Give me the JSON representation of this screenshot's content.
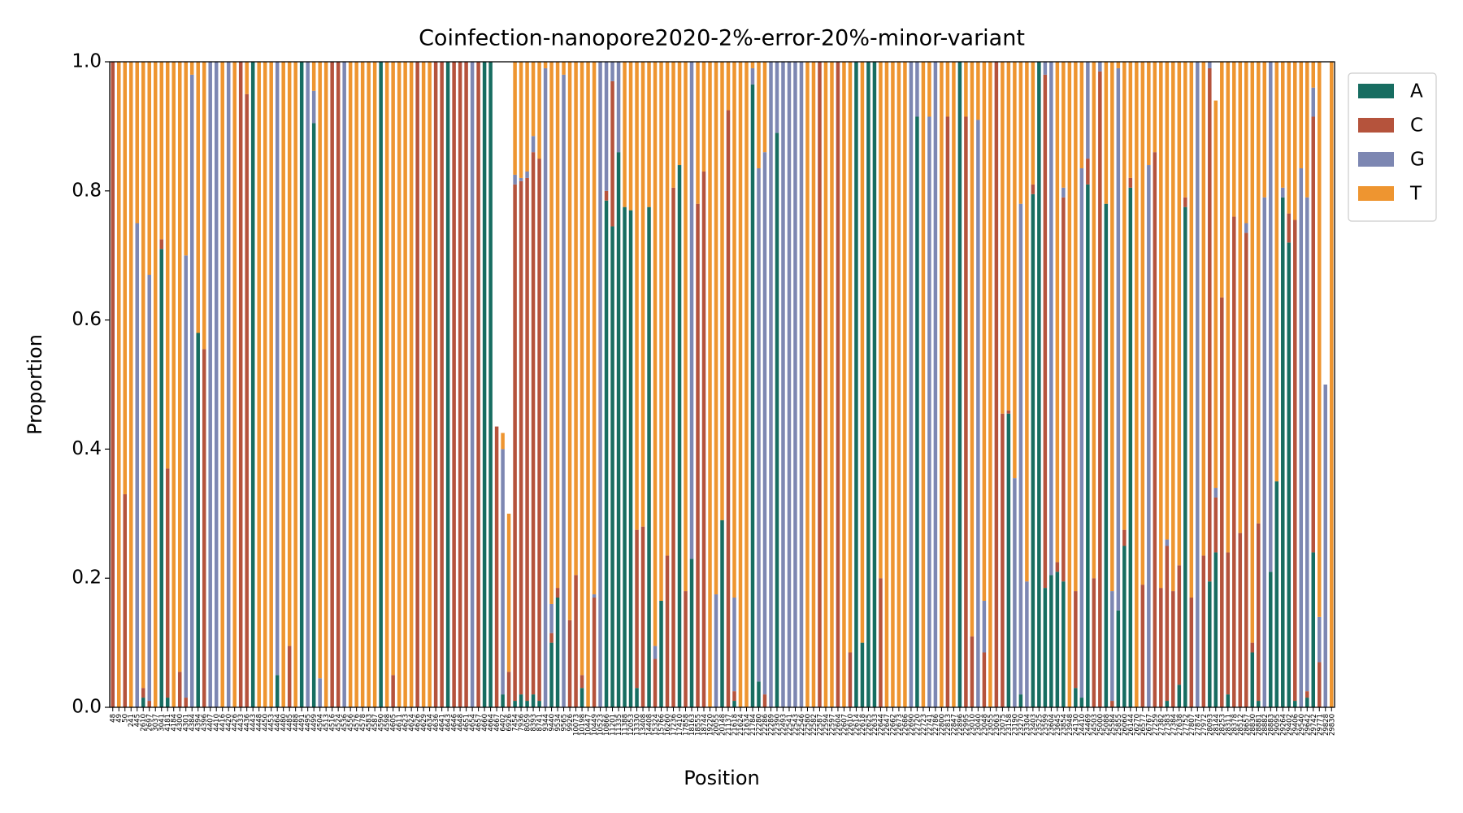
{
  "chart_data": {
    "type": "stacked_bar",
    "title": "Coinfection-nanopore2020-2%-error-20%-minor-variant",
    "xlabel": "Position",
    "ylabel": "Proportion",
    "ylim": [
      0,
      1
    ],
    "yticks": [
      {
        "value": 0,
        "label": "0.0"
      },
      {
        "value": 0.2,
        "label": "0.2"
      },
      {
        "value": 0.4,
        "label": "0.4"
      },
      {
        "value": 0.6,
        "label": "0.6"
      },
      {
        "value": 0.8,
        "label": "0.8"
      },
      {
        "value": 1,
        "label": "1.0"
      }
    ],
    "categories": [
      "48",
      "49",
      "50",
      "241",
      "445",
      "2610",
      "2697",
      "3037",
      "3041",
      "4181",
      "4184",
      "4300",
      "4301",
      "4384",
      "4394",
      "4396",
      "4407",
      "4410",
      "4416",
      "4420",
      "4426",
      "4433",
      "4436",
      "4443",
      "4448",
      "4450",
      "4453",
      "4464",
      "4480",
      "4485",
      "4488",
      "4491",
      "4495",
      "4499",
      "4504",
      "4513",
      "4516",
      "4524",
      "4536",
      "4556",
      "4576",
      "4578",
      "4583",
      "4587",
      "4590",
      "4598",
      "4605",
      "4611",
      "4623",
      "4624",
      "4626",
      "4629",
      "4634",
      "4636",
      "4641",
      "4643",
      "4646",
      "4648",
      "4651",
      "4654",
      "4657",
      "4660",
      "4664",
      "4667",
      "6402",
      "6926",
      "7454",
      "7936",
      "8059",
      "8393",
      "8741",
      "9344",
      "9440",
      "9534",
      "9565",
      "9926",
      "10073",
      "10198",
      "10447",
      "10449",
      "10523",
      "10866",
      "11201",
      "11335",
      "11388",
      "12053",
      "13330",
      "13408",
      "14408",
      "15324",
      "15766",
      "16260",
      "17236",
      "17410",
      "17858",
      "18163",
      "18555",
      "18744",
      "19220",
      "20055",
      "20148",
      "21137",
      "21618",
      "21624",
      "21634",
      "21784",
      "22280",
      "22286",
      "22289",
      "22390",
      "22493",
      "22541",
      "22543",
      "22546",
      "22580",
      "22582",
      "22587",
      "22594",
      "22597",
      "22604",
      "22607",
      "22610",
      "22614",
      "22618",
      "22625",
      "22633",
      "22644",
      "22647",
      "22662",
      "22673",
      "22686",
      "22690",
      "22720",
      "22723",
      "22741",
      "22786",
      "22800",
      "22813",
      "22847",
      "22896",
      "22995",
      "23010",
      "23040",
      "23048",
      "23055",
      "23063",
      "23075",
      "23158",
      "23190",
      "23270",
      "23304",
      "23403",
      "23525",
      "23599",
      "23604",
      "23645",
      "23854",
      "23948",
      "24130",
      "24410",
      "24469",
      "24503",
      "25000",
      "25088",
      "25584",
      "25855",
      "26060",
      "26144",
      "26270",
      "26577",
      "26767",
      "27259",
      "27382",
      "27383",
      "27384",
      "27638",
      "27752",
      "27807",
      "27874",
      "27972",
      "28093",
      "28144",
      "28253",
      "28311",
      "28378",
      "28512",
      "28657",
      "28830",
      "28881",
      "28882",
      "28883",
      "29095",
      "29264",
      "29402",
      "29406",
      "29540",
      "29642",
      "29742",
      "29771",
      "29828",
      "29830"
    ],
    "series": [
      {
        "name": "A",
        "color": "#176d61",
        "values": [
          0,
          0,
          0,
          0,
          0,
          0.015,
          0,
          0,
          0.71,
          0.015,
          0,
          0,
          0,
          0,
          0.58,
          0,
          0,
          0,
          0,
          0,
          0,
          0,
          0,
          1,
          0,
          0,
          0,
          0.05,
          0,
          0,
          0,
          1,
          0,
          0.905,
          0,
          0,
          0,
          0,
          0,
          0,
          0,
          0,
          0,
          0,
          1,
          0,
          0,
          0,
          0,
          0,
          0,
          0,
          0,
          0,
          0,
          1,
          0,
          0,
          0,
          0,
          0,
          1,
          1,
          0,
          0.02,
          0,
          0.01,
          0.02,
          0.01,
          0.02,
          0.01,
          0,
          0.1,
          0.17,
          0,
          0,
          0,
          0.03,
          0,
          0,
          0,
          0.785,
          0.745,
          0.86,
          0.775,
          0.77,
          0.03,
          0,
          0.775,
          0,
          0.165,
          0,
          0,
          0.84,
          0,
          0.23,
          0,
          0,
          0,
          0,
          0.29,
          0,
          0.01,
          0,
          0,
          0.965,
          0.04,
          0,
          0,
          0.89,
          0,
          0,
          0,
          0,
          0,
          0,
          0,
          0,
          0,
          0,
          0,
          0,
          1,
          0.1,
          1,
          1,
          0,
          0,
          0,
          0,
          0,
          0,
          0.915,
          0,
          0,
          0,
          0,
          0,
          0,
          1,
          0,
          0,
          0,
          0,
          0,
          0,
          0,
          0.455,
          0,
          0.02,
          0,
          0.795,
          1,
          0.185,
          0.205,
          0.21,
          0.195,
          0,
          0.03,
          0.015,
          0.81,
          0,
          0,
          0.78,
          0,
          0.15,
          0.25,
          0.805,
          0,
          0,
          0,
          0,
          0,
          0.01,
          0,
          0.035,
          0.775,
          0,
          0,
          0,
          0.195,
          0.24,
          0,
          0.02,
          0,
          0,
          0,
          0.085,
          0.01,
          0,
          0.21,
          0.35,
          0.79,
          0.72,
          0.01,
          0,
          0.015,
          0.24,
          0,
          0,
          0
        ]
      },
      {
        "name": "C",
        "color": "#b5533c",
        "values": [
          1,
          0,
          0.33,
          0,
          0,
          0.015,
          0.01,
          0,
          0.015,
          0.355,
          0,
          0.055,
          0.015,
          0,
          0,
          0.555,
          0,
          0,
          0,
          0,
          0,
          1,
          0.95,
          0,
          0,
          0,
          0,
          0,
          0,
          0.095,
          0,
          0,
          0,
          0,
          0,
          0,
          1,
          1,
          0,
          0,
          0,
          0,
          0,
          0,
          0,
          0,
          0.05,
          0,
          0,
          0,
          1,
          0,
          0,
          1,
          1,
          0,
          1,
          1,
          1,
          0,
          1,
          0,
          0,
          0.435,
          0,
          0.055,
          0.8,
          0.795,
          0.81,
          0.84,
          0.84,
          0,
          0.015,
          0.015,
          0,
          0.135,
          0.205,
          0.02,
          0,
          0.17,
          0,
          0.015,
          0.225,
          0,
          0,
          0,
          0.245,
          0.28,
          0,
          0.075,
          0,
          0.235,
          0.805,
          0,
          0.18,
          0,
          0.78,
          0.83,
          0,
          0,
          0,
          0.925,
          0.015,
          0,
          0,
          0,
          0,
          0.02,
          0,
          0,
          0,
          0,
          0,
          0,
          0,
          0,
          1,
          0,
          0,
          1,
          0,
          0.085,
          0,
          0,
          0,
          0,
          0.2,
          0,
          0,
          0,
          0,
          0,
          0,
          0,
          0,
          0,
          0,
          0.915,
          0,
          0,
          0.915,
          0.11,
          0,
          0.085,
          0,
          1,
          0.455,
          0.005,
          0,
          0,
          0,
          0.015,
          0,
          0.795,
          0,
          0.015,
          0.595,
          0,
          0.15,
          0,
          0.04,
          0.2,
          0.985,
          0,
          0.01,
          0,
          0.025,
          0.015,
          0,
          0.19,
          0,
          0.86,
          0.185,
          0.24,
          0.18,
          0.185,
          0.015,
          0.17,
          0,
          0.235,
          0.795,
          0.085,
          0.635,
          0.22,
          0.76,
          0.27,
          0.735,
          0.015,
          0.275,
          0,
          0,
          0,
          0,
          0.045,
          0.745,
          0,
          0.01,
          0.675,
          0.07,
          0,
          0
        ]
      },
      {
        "name": "G",
        "color": "#7d87b2",
        "values": [
          0,
          0,
          0,
          0,
          0.75,
          0,
          0.66,
          0,
          0,
          0,
          0,
          0,
          0.685,
          0.98,
          0,
          0,
          1,
          1,
          0,
          1,
          0,
          0,
          0,
          0,
          0,
          0,
          0,
          0.95,
          0,
          0,
          0,
          0,
          1,
          0.05,
          0.045,
          0,
          0,
          0,
          1,
          0,
          0,
          0,
          0,
          0,
          0,
          0,
          0,
          0,
          0,
          0,
          0,
          0,
          0,
          0,
          0,
          0,
          0,
          0,
          0,
          1,
          0,
          0,
          0,
          0,
          0.38,
          0,
          0.015,
          0.005,
          0.01,
          0.025,
          0,
          0.99,
          0.045,
          0,
          0.98,
          0,
          0,
          0,
          0,
          0.005,
          1,
          0.2,
          0.03,
          0.14,
          0,
          0,
          0,
          0,
          0,
          0.02,
          0,
          0,
          0,
          0,
          0,
          0.77,
          0,
          0,
          0,
          0.175,
          0,
          0,
          0.145,
          0,
          0,
          0.025,
          0.795,
          0.84,
          1,
          0.11,
          1,
          1,
          1,
          1,
          0,
          0,
          0,
          0,
          0,
          0,
          0,
          0,
          0,
          0,
          0,
          0,
          0,
          0,
          0,
          0,
          0,
          1,
          0.085,
          0,
          0.915,
          1,
          0,
          0,
          0,
          0,
          0,
          0,
          0.91,
          0.08,
          0,
          0,
          0,
          0,
          0.355,
          0.76,
          0.195,
          0,
          0,
          0.02,
          0.795,
          0,
          0.015,
          0,
          0,
          0.82,
          0.15,
          0,
          0.015,
          0,
          0.17,
          0.84,
          0,
          0,
          0,
          0,
          0.84,
          0,
          0,
          0.01,
          0,
          0,
          0,
          0,
          1,
          0,
          0.01,
          0.015,
          0,
          0,
          0,
          0,
          0.015,
          0,
          0,
          0.79,
          0.79,
          0,
          0.015,
          0,
          0,
          0.835,
          0.765,
          0.045,
          0.07,
          0.5,
          0
        ]
      },
      {
        "name": "T",
        "color": "#ee9530",
        "values": [
          0,
          1,
          0.67,
          1,
          0.25,
          0.97,
          0.33,
          1,
          0.275,
          0.63,
          1,
          0.945,
          0.3,
          0.02,
          0.42,
          0.445,
          0,
          0,
          1,
          0,
          1,
          0,
          0.05,
          0,
          1,
          1,
          1,
          0,
          1,
          0.905,
          1,
          0,
          0,
          0.045,
          0.955,
          1,
          0,
          0,
          0,
          1,
          1,
          1,
          1,
          1,
          0,
          1,
          0.95,
          1,
          1,
          1,
          0,
          1,
          1,
          0,
          0,
          0,
          0,
          0,
          0,
          0,
          0,
          0,
          0,
          0,
          0.025,
          0.245,
          0.175,
          0.18,
          0.17,
          0.115,
          0.15,
          0.01,
          0.84,
          0.815,
          0.02,
          0.865,
          0.795,
          0.95,
          1,
          0.825,
          0,
          0,
          0,
          0,
          0.225,
          0.23,
          0.725,
          0.72,
          0.225,
          0.905,
          0.835,
          0.765,
          0.195,
          0.16,
          0.82,
          0,
          0.22,
          0.17,
          1,
          0.825,
          0.71,
          0.075,
          0.83,
          1,
          1,
          0.01,
          0.165,
          0.14,
          0,
          0,
          0,
          0,
          0,
          0,
          1,
          1,
          0,
          1,
          1,
          0,
          1,
          0.915,
          0,
          0.9,
          0,
          0,
          0.8,
          1,
          1,
          1,
          1,
          0,
          0,
          1,
          0.085,
          0,
          1,
          0.085,
          1,
          0,
          0.085,
          0.89,
          0.09,
          0.835,
          1,
          0,
          0.545,
          0.54,
          0.645,
          0.22,
          0.805,
          0.19,
          0,
          0,
          0,
          0.775,
          0.195,
          1,
          0.82,
          0.165,
          0,
          0.8,
          0,
          0.22,
          0.82,
          0.01,
          0.725,
          0.18,
          1,
          0.81,
          0.16,
          0.14,
          0.815,
          0.74,
          0.82,
          0.78,
          0.21,
          0.83,
          0,
          0.765,
          0,
          0.6,
          0.365,
          0.76,
          0.24,
          0.73,
          0.25,
          0.9,
          0.715,
          0.21,
          0,
          0.65,
          0.195,
          0.235,
          0.245,
          0.165,
          0.21,
          0.04,
          0.86,
          0,
          1
        ]
      }
    ]
  }
}
